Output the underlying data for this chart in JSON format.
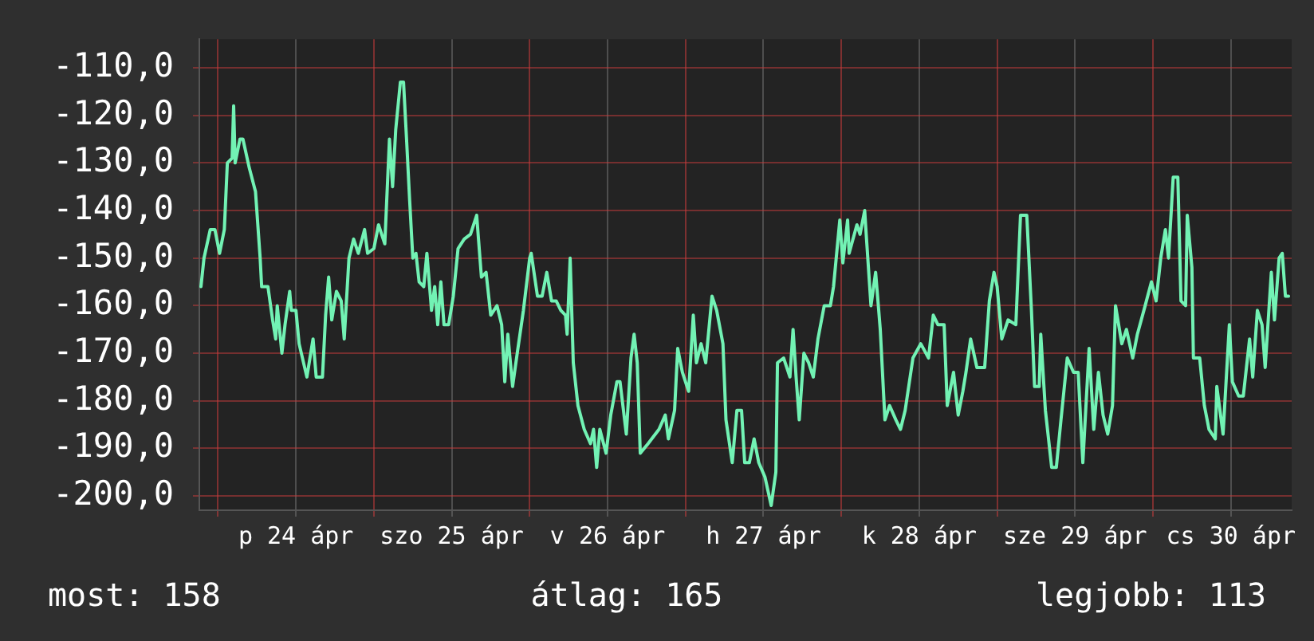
{
  "chart_data": {
    "type": "line",
    "xlim": [
      "--04-23T21:07",
      "--04-30T21:22"
    ],
    "xticks": [
      {
        "value": "--04-24T00:00",
        "label": null
      },
      {
        "value": "--04-24T12:00",
        "label": "p 24 ápr"
      },
      {
        "value": "--04-25T00:00",
        "label": null
      },
      {
        "value": "--04-25T12:00",
        "label": "szo 25 ápr"
      },
      {
        "value": "--04-26T00:00",
        "label": null
      },
      {
        "value": "--04-26T12:00",
        "label": "v 26 ápr"
      },
      {
        "value": "--04-27T00:00",
        "label": null
      },
      {
        "value": "--04-27T12:00",
        "label": "h 27 ápr"
      },
      {
        "value": "--04-28T00:00",
        "label": null
      },
      {
        "value": "--04-28T12:00",
        "label": "k 28 ápr"
      },
      {
        "value": "--04-29T00:00",
        "label": null
      },
      {
        "value": "--04-29T12:00",
        "label": "sze 29 ápr"
      },
      {
        "value": "--04-30T00:00",
        "label": null
      },
      {
        "value": "--04-30T12:00",
        "label": "cs 30 ápr"
      }
    ],
    "ylim": [
      -203,
      -104
    ],
    "yticks": [
      {
        "value": -200,
        "label": "-200,0"
      },
      {
        "value": -190,
        "label": "-190,0"
      },
      {
        "value": -180,
        "label": "-180,0"
      },
      {
        "value": -170,
        "label": "-170,0"
      },
      {
        "value": -160,
        "label": "-160,0"
      },
      {
        "value": -150,
        "label": "-150,0"
      },
      {
        "value": -140,
        "label": "-140,0"
      },
      {
        "value": -130,
        "label": "-130,0"
      },
      {
        "value": -120,
        "label": "-120,0"
      },
      {
        "value": -110,
        "label": "-110,0"
      }
    ],
    "grid": true,
    "annotations": [
      "most: 158",
      "átlag: 165",
      "legjobb: 113"
    ],
    "series": [
      {
        "color": "#72f2b4",
        "x": [
          "--04-23T21:22",
          "--04-23T21:50",
          "--04-23T22:48",
          "--04-23T23:31",
          "--04-24T00:14",
          "--04-24T00:58",
          "--04-24T01:26",
          "--04-24T02:10",
          "--04-24T02:24",
          "--04-24T02:38",
          "--04-24T03:22",
          "--04-24T03:50",
          "--04-24T04:48",
          "--04-24T05:46",
          "--04-24T06:29",
          "--04-24T06:43",
          "--04-24T07:41",
          "--04-24T08:24",
          "--04-24T08:53",
          "--04-24T09:07",
          "--04-24T09:50",
          "--04-24T10:19",
          "--04-24T11:02",
          "--04-24T11:17",
          "--04-24T12:00",
          "--04-24T12:29",
          "--04-24T13:41",
          "--04-24T14:38",
          "--04-24T15:07",
          "--04-24T16:05",
          "--04-24T16:34",
          "--04-24T17:02",
          "--04-24T17:31",
          "--04-24T18:14",
          "--04-24T18:58",
          "--04-24T19:26",
          "--04-24T20:10",
          "--04-24T20:53",
          "--04-24T21:36",
          "--04-24T22:34",
          "--04-24T23:02",
          "--04-25T00:00",
          "--04-25T00:43",
          "--04-25T01:41",
          "--04-25T02:24",
          "--04-25T02:53",
          "--04-25T03:22",
          "--04-25T04:05",
          "--04-25T04:34",
          "--04-25T05:02",
          "--04-25T05:31",
          "--04-25T06:00",
          "--04-25T06:29",
          "--04-25T06:58",
          "--04-25T07:41",
          "--04-25T08:10",
          "--04-25T08:53",
          "--04-25T09:22",
          "--04-25T09:50",
          "--04-25T10:19",
          "--04-25T10:48",
          "--04-25T11:31",
          "--04-25T12:14",
          "--04-25T12:58",
          "--04-25T13:55",
          "--04-25T14:53",
          "--04-25T15:50",
          "--04-25T16:34",
          "--04-25T17:17",
          "--04-25T18:00",
          "--04-25T18:58",
          "--04-25T19:41",
          "--04-25T20:10",
          "--04-25T20:38",
          "--04-25T21:22",
          "--04-25T22:05",
          "--04-25T23:02",
          "--04-26T00:00",
          "--04-26T00:14",
          "--04-26T01:12",
          "--04-26T01:55",
          "--04-26T02:38",
          "--04-26T03:22",
          "--04-26T04:05",
          "--04-26T04:48",
          "--04-26T05:31",
          "--04-26T05:46",
          "--04-26T06:14",
          "--04-26T06:43",
          "--04-26T07:26",
          "--04-26T08:24",
          "--04-26T09:22",
          "--04-26T09:50",
          "--04-26T10:19",
          "--04-26T10:48",
          "--04-26T11:46",
          "--04-26T12:29",
          "--04-26T13:26",
          "--04-26T13:55",
          "--04-26T14:53",
          "--04-26T15:36",
          "--04-26T16:05",
          "--04-26T16:34",
          "--04-26T17:02",
          "--04-26T18:14",
          "--04-26T19:55",
          "--04-26T20:53",
          "--04-26T21:22",
          "--04-26T22:19",
          "--04-26T22:48",
          "--04-26T23:31",
          "--04-27T00:29",
          "--04-27T01:12",
          "--04-27T01:41",
          "--04-27T02:24",
          "--04-27T03:07",
          "--04-27T04:05",
          "--04-27T04:48",
          "--04-27T05:46",
          "--04-27T06:14",
          "--04-27T07:12",
          "--04-27T07:55",
          "--04-27T08:38",
          "--04-27T09:07",
          "--04-27T09:50",
          "--04-27T10:34",
          "--04-27T11:17",
          "--04-27T12:14",
          "--04-27T13:12",
          "--04-27T13:55",
          "--04-27T14:10",
          "--04-27T15:07",
          "--04-27T16:05",
          "--04-27T16:34",
          "--04-27T17:02",
          "--04-27T17:31",
          "--04-27T18:14",
          "--04-27T18:58",
          "--04-27T19:41",
          "--04-27T20:24",
          "--04-27T21:22",
          "--04-27T22:19",
          "--04-27T22:48",
          "--04-27T23:46",
          "--04-28T00:14",
          "--04-28T00:58",
          "--04-28T01:12",
          "--04-28T02:24",
          "--04-28T02:53",
          "--04-28T03:36",
          "--04-28T03:50",
          "--04-28T04:34",
          "--04-28T05:17",
          "--04-28T06:00",
          "--04-28T06:43",
          "--04-28T07:26",
          "--04-28T08:24",
          "--04-28T09:07",
          "--04-28T09:50",
          "--04-28T11:02",
          "--04-28T12:14",
          "--04-28T13:26",
          "--04-28T14:10",
          "--04-28T14:53",
          "--04-28T15:50",
          "--04-28T16:19",
          "--04-28T17:17",
          "--04-28T18:00",
          "--04-28T18:43",
          "--04-28T19:12",
          "--04-28T19:55",
          "--04-28T20:53",
          "--04-28T22:05",
          "--04-28T22:48",
          "--04-28T23:31",
          "--04-29T00:00",
          "--04-29T00:43",
          "--04-29T01:41",
          "--04-29T02:53",
          "--04-29T03:36",
          "--04-29T04:34",
          "--04-29T05:17",
          "--04-29T05:46",
          "--04-29T06:29",
          "--04-29T06:43",
          "--04-29T07:26",
          "--04-29T08:24",
          "--04-29T09:07",
          "--04-29T09:50",
          "--04-29T10:48",
          "--04-29T11:46",
          "--04-29T12:29",
          "--04-29T13:12",
          "--04-29T14:10",
          "--04-29T14:53",
          "--04-29T15:36",
          "--04-29T16:19",
          "--04-29T17:02",
          "--04-29T17:46",
          "--04-29T18:14",
          "--04-29T19:12",
          "--04-29T19:55",
          "--04-29T20:53",
          "--04-29T21:36",
          "--04-29T22:48",
          "--04-29T23:46",
          "--04-30T00:29",
          "--04-30T01:12",
          "--04-30T01:55",
          "--04-30T02:24",
          "--04-30T03:07",
          "--04-30T03:50",
          "--04-30T04:19",
          "--04-30T05:02",
          "--04-30T05:17",
          "--04-30T06:00",
          "--04-30T06:14",
          "--04-30T07:12",
          "--04-30T07:55",
          "--04-30T08:38",
          "--04-30T09:36",
          "--04-30T09:50",
          "--04-30T10:48",
          "--04-30T11:46",
          "--04-30T12:14",
          "--04-30T13:12",
          "--04-30T13:55",
          "--04-30T14:53",
          "--04-30T15:22",
          "--04-30T16:05",
          "--04-30T16:48",
          "--04-30T17:17",
          "--04-30T18:14",
          "--04-30T18:43",
          "--04-30T19:26",
          "--04-30T19:55",
          "--04-30T20:24",
          "--04-30T20:53"
        ],
        "values": [
          -156,
          -150,
          -144,
          -144,
          -149,
          -144,
          -130,
          -129,
          -118,
          -130,
          -125,
          -125,
          -131,
          -136,
          -150,
          -156,
          -156,
          -163,
          -167,
          -160,
          -170,
          -164,
          -157,
          -161,
          -161,
          -168,
          -175,
          -167,
          -175,
          -175,
          -162,
          -154,
          -163,
          -157,
          -159,
          -167,
          -150,
          -146,
          -149,
          -144,
          -149,
          -148,
          -143,
          -147,
          -125,
          -135,
          -123,
          -113,
          -113,
          -125,
          -138,
          -150,
          -149,
          -155,
          -156,
          -149,
          -161,
          -156,
          -164,
          -155,
          -164,
          -164,
          -158,
          -148,
          -146,
          -145,
          -141,
          -154,
          -153,
          -162,
          -160,
          -164,
          -176,
          -166,
          -177,
          -170,
          -161,
          -150,
          -149,
          -158,
          -158,
          -153,
          -159,
          -159,
          -161,
          -162,
          -166,
          -150,
          -172,
          -181,
          -186,
          -189,
          -186,
          -194,
          -186,
          -191,
          -183,
          -176,
          -176,
          -187,
          -171,
          -166,
          -172,
          -191,
          -189,
          -186,
          -183,
          -188,
          -182,
          -169,
          -174,
          -178,
          -162,
          -172,
          -168,
          -172,
          -158,
          -161,
          -168,
          -184,
          -193,
          -182,
          -182,
          -193,
          -193,
          -188,
          -193,
          -196,
          -202,
          -195,
          -172,
          -171,
          -175,
          -165,
          -175,
          -184,
          -170,
          -172,
          -175,
          -167,
          -160,
          -160,
          -156,
          -142,
          -151,
          -142,
          -149,
          -143,
          -145,
          -140,
          -145,
          -160,
          -153,
          -165,
          -184,
          -181,
          -184,
          -186,
          -182,
          -171,
          -168,
          -171,
          -162,
          -164,
          -164,
          -181,
          -174,
          -183,
          -178,
          -174,
          -167,
          -173,
          -173,
          -159,
          -153,
          -156,
          -167,
          -163,
          -164,
          -141,
          -141,
          -161,
          -177,
          -177,
          -166,
          -182,
          -194,
          -194,
          -184,
          -171,
          -174,
          -174,
          -193,
          -169,
          -186,
          -174,
          -183,
          -187,
          -181,
          -160,
          -168,
          -165,
          -171,
          -166,
          -160,
          -155,
          -159,
          -150,
          -144,
          -150,
          -133,
          -133,
          -159,
          -160,
          -141,
          -152,
          -171,
          -171,
          -181,
          -186,
          -188,
          -177,
          -187,
          -164,
          -176,
          -179,
          -179,
          -167,
          -175,
          -161,
          -164,
          -173,
          -153,
          -163,
          -150,
          -149,
          -158,
          -158
        ]
      }
    ]
  }
}
